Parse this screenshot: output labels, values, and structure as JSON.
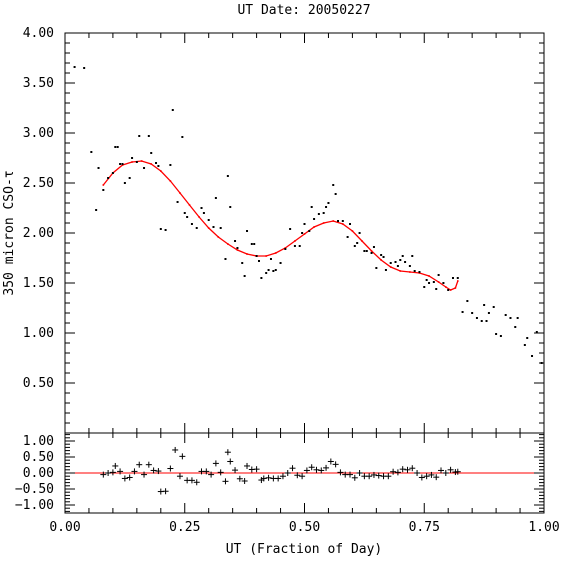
{
  "chart_data": [
    {
      "type": "scatter",
      "title": "UT Date: 20050227",
      "ylabel": "350 micron CSO-τ",
      "xlabel": "",
      "xlim": [
        0,
        1
      ],
      "ylim": [
        0,
        4
      ],
      "yticks": [
        "0.50",
        "1.00",
        "1.50",
        "2.00",
        "2.50",
        "3.00",
        "3.50",
        "4.00"
      ],
      "ytick_values": [
        0.5,
        1.0,
        1.5,
        2.0,
        2.5,
        3.0,
        3.5,
        4.0
      ],
      "series": [
        {
          "kind": "points",
          "color": "#000000",
          "points": [
            [
              0.02,
              3.66
            ],
            [
              0.04,
              3.65
            ],
            [
              0.055,
              2.81
            ],
            [
              0.065,
              2.23
            ],
            [
              0.07,
              2.65
            ],
            [
              0.08,
              2.43
            ],
            [
              0.09,
              2.55
            ],
            [
              0.1,
              2.6
            ],
            [
              0.105,
              2.86
            ],
            [
              0.11,
              2.86
            ],
            [
              0.115,
              2.69
            ],
            [
              0.12,
              2.69
            ],
            [
              0.125,
              2.5
            ],
            [
              0.135,
              2.55
            ],
            [
              0.14,
              2.75
            ],
            [
              0.15,
              2.71
            ],
            [
              0.155,
              2.97
            ],
            [
              0.165,
              2.65
            ],
            [
              0.175,
              2.97
            ],
            [
              0.18,
              2.8
            ],
            [
              0.19,
              2.7
            ],
            [
              0.195,
              2.67
            ],
            [
              0.2,
              2.04
            ],
            [
              0.21,
              2.03
            ],
            [
              0.22,
              2.68
            ],
            [
              0.225,
              3.23
            ],
            [
              0.235,
              2.31
            ],
            [
              0.245,
              2.96
            ],
            [
              0.25,
              2.2
            ],
            [
              0.255,
              2.16
            ],
            [
              0.265,
              2.09
            ],
            [
              0.275,
              2.05
            ],
            [
              0.285,
              2.25
            ],
            [
              0.29,
              2.2
            ],
            [
              0.3,
              2.13
            ],
            [
              0.31,
              2.06
            ],
            [
              0.315,
              2.35
            ],
            [
              0.325,
              2.05
            ],
            [
              0.335,
              1.74
            ],
            [
              0.34,
              2.57
            ],
            [
              0.345,
              2.26
            ],
            [
              0.355,
              1.92
            ],
            [
              0.36,
              1.85
            ],
            [
              0.37,
              1.7
            ],
            [
              0.375,
              1.57
            ],
            [
              0.38,
              2.02
            ],
            [
              0.39,
              1.89
            ],
            [
              0.395,
              1.89
            ],
            [
              0.4,
              1.77
            ],
            [
              0.405,
              1.72
            ],
            [
              0.41,
              1.55
            ],
            [
              0.42,
              1.6
            ],
            [
              0.425,
              1.63
            ],
            [
              0.43,
              1.74
            ],
            [
              0.435,
              1.62
            ],
            [
              0.44,
              1.63
            ],
            [
              0.45,
              1.7
            ],
            [
              0.46,
              1.84
            ],
            [
              0.47,
              2.04
            ],
            [
              0.48,
              1.87
            ],
            [
              0.49,
              1.87
            ],
            [
              0.495,
              2.0
            ],
            [
              0.5,
              2.09
            ],
            [
              0.51,
              2.02
            ],
            [
              0.515,
              2.26
            ],
            [
              0.52,
              2.14
            ],
            [
              0.53,
              2.19
            ],
            [
              0.54,
              2.2
            ],
            [
              0.545,
              2.26
            ],
            [
              0.55,
              2.3
            ],
            [
              0.56,
              2.48
            ],
            [
              0.565,
              2.39
            ],
            [
              0.57,
              2.12
            ],
            [
              0.58,
              2.12
            ],
            [
              0.59,
              1.96
            ],
            [
              0.595,
              2.09
            ],
            [
              0.605,
              1.87
            ],
            [
              0.61,
              1.9
            ],
            [
              0.615,
              2.0
            ],
            [
              0.625,
              1.82
            ],
            [
              0.63,
              1.82
            ],
            [
              0.64,
              1.8
            ],
            [
              0.645,
              1.86
            ],
            [
              0.65,
              1.65
            ],
            [
              0.66,
              1.78
            ],
            [
              0.665,
              1.76
            ],
            [
              0.67,
              1.63
            ],
            [
              0.68,
              1.7
            ],
            [
              0.69,
              1.71
            ],
            [
              0.695,
              1.67
            ],
            [
              0.7,
              1.73
            ],
            [
              0.705,
              1.77
            ],
            [
              0.71,
              1.71
            ],
            [
              0.72,
              1.67
            ],
            [
              0.725,
              1.77
            ],
            [
              0.73,
              1.62
            ],
            [
              0.74,
              1.61
            ],
            [
              0.75,
              1.46
            ],
            [
              0.755,
              1.53
            ],
            [
              0.76,
              1.5
            ],
            [
              0.77,
              1.51
            ],
            [
              0.775,
              1.44
            ],
            [
              0.78,
              1.58
            ],
            [
              0.79,
              1.5
            ],
            [
              0.8,
              1.43
            ],
            [
              0.81,
              1.55
            ],
            [
              0.82,
              1.55
            ],
            [
              0.83,
              1.21
            ],
            [
              0.84,
              1.32
            ],
            [
              0.85,
              1.2
            ],
            [
              0.86,
              1.15
            ],
            [
              0.87,
              1.12
            ],
            [
              0.875,
              1.28
            ],
            [
              0.88,
              1.12
            ],
            [
              0.885,
              1.2
            ],
            [
              0.895,
              1.26
            ],
            [
              0.9,
              0.99
            ],
            [
              0.91,
              0.97
            ],
            [
              0.92,
              1.18
            ],
            [
              0.93,
              1.15
            ],
            [
              0.94,
              1.06
            ],
            [
              0.945,
              1.15
            ],
            [
              0.96,
              0.88
            ],
            [
              0.965,
              0.95
            ],
            [
              0.975,
              0.77
            ],
            [
              0.985,
              1.01
            ],
            [
              0.995,
              0.7
            ]
          ]
        },
        {
          "kind": "line",
          "color": "#ff0000",
          "points": [
            [
              0.08,
              2.48
            ],
            [
              0.1,
              2.6
            ],
            [
              0.12,
              2.68
            ],
            [
              0.14,
              2.71
            ],
            [
              0.16,
              2.72
            ],
            [
              0.18,
              2.69
            ],
            [
              0.2,
              2.62
            ],
            [
              0.22,
              2.52
            ],
            [
              0.24,
              2.4
            ],
            [
              0.26,
              2.28
            ],
            [
              0.28,
              2.16
            ],
            [
              0.3,
              2.05
            ],
            [
              0.32,
              1.96
            ],
            [
              0.34,
              1.89
            ],
            [
              0.36,
              1.83
            ],
            [
              0.38,
              1.79
            ],
            [
              0.4,
              1.77
            ],
            [
              0.42,
              1.77
            ],
            [
              0.44,
              1.8
            ],
            [
              0.46,
              1.85
            ],
            [
              0.48,
              1.92
            ],
            [
              0.5,
              1.99
            ],
            [
              0.52,
              2.06
            ],
            [
              0.54,
              2.1
            ],
            [
              0.56,
              2.12
            ],
            [
              0.58,
              2.09
            ],
            [
              0.6,
              2.02
            ],
            [
              0.62,
              1.92
            ],
            [
              0.64,
              1.82
            ],
            [
              0.66,
              1.73
            ],
            [
              0.68,
              1.66
            ],
            [
              0.7,
              1.62
            ],
            [
              0.72,
              1.61
            ],
            [
              0.74,
              1.6
            ],
            [
              0.76,
              1.57
            ],
            [
              0.78,
              1.51
            ],
            [
              0.795,
              1.46
            ],
            [
              0.805,
              1.43
            ],
            [
              0.815,
              1.45
            ],
            [
              0.82,
              1.52
            ]
          ]
        }
      ]
    },
    {
      "type": "scatter",
      "title": "",
      "xlabel": "UT (Fraction of Day)",
      "ylabel": "",
      "xlim": [
        0,
        1
      ],
      "ylim": [
        -1.25,
        1.25
      ],
      "xticks": [
        "0.00",
        "0.25",
        "0.50",
        "0.75",
        "1.00"
      ],
      "xtick_values": [
        0,
        0.25,
        0.5,
        0.75,
        1.0
      ],
      "yticks": [
        "1.00",
        "0.50",
        "0.00",
        "−0.50",
        "−1.00"
      ],
      "ytick_values": [
        1.0,
        0.5,
        0.0,
        -0.5,
        -1.0
      ],
      "reference_line": {
        "y": 0,
        "color": "#ff0000"
      },
      "series": [
        {
          "kind": "plus-markers",
          "color": "#000000",
          "points": [
            [
              0.08,
              -0.05
            ],
            [
              0.09,
              0.0
            ],
            [
              0.1,
              0.02
            ],
            [
              0.105,
              0.22
            ],
            [
              0.115,
              0.05
            ],
            [
              0.125,
              -0.17
            ],
            [
              0.135,
              -0.14
            ],
            [
              0.145,
              0.05
            ],
            [
              0.155,
              0.26
            ],
            [
              0.165,
              -0.05
            ],
            [
              0.175,
              0.26
            ],
            [
              0.185,
              0.08
            ],
            [
              0.195,
              0.06
            ],
            [
              0.2,
              -0.58
            ],
            [
              0.21,
              -0.57
            ],
            [
              0.22,
              0.14
            ],
            [
              0.23,
              0.72
            ],
            [
              0.24,
              -0.1
            ],
            [
              0.245,
              0.52
            ],
            [
              0.255,
              -0.23
            ],
            [
              0.265,
              -0.23
            ],
            [
              0.275,
              -0.29
            ],
            [
              0.285,
              0.05
            ],
            [
              0.295,
              0.05
            ],
            [
              0.305,
              -0.05
            ],
            [
              0.315,
              0.3
            ],
            [
              0.325,
              0.02
            ],
            [
              0.335,
              -0.26
            ],
            [
              0.34,
              0.65
            ],
            [
              0.345,
              0.36
            ],
            [
              0.355,
              0.09
            ],
            [
              0.365,
              -0.18
            ],
            [
              0.375,
              -0.25
            ],
            [
              0.38,
              0.22
            ],
            [
              0.39,
              0.11
            ],
            [
              0.4,
              0.12
            ],
            [
              0.41,
              -0.22
            ],
            [
              0.415,
              -0.17
            ],
            [
              0.425,
              -0.15
            ],
            [
              0.435,
              -0.17
            ],
            [
              0.445,
              -0.17
            ],
            [
              0.455,
              -0.1
            ],
            [
              0.465,
              0.0
            ],
            [
              0.475,
              0.15
            ],
            [
              0.485,
              -0.07
            ],
            [
              0.495,
              -0.1
            ],
            [
              0.505,
              0.08
            ],
            [
              0.515,
              0.18
            ],
            [
              0.525,
              0.1
            ],
            [
              0.535,
              0.08
            ],
            [
              0.545,
              0.16
            ],
            [
              0.555,
              0.36
            ],
            [
              0.565,
              0.27
            ],
            [
              0.575,
              0.02
            ],
            [
              0.585,
              -0.05
            ],
            [
              0.595,
              -0.05
            ],
            [
              0.605,
              -0.15
            ],
            [
              0.615,
              0.0
            ],
            [
              0.625,
              -0.1
            ],
            [
              0.635,
              -0.1
            ],
            [
              0.645,
              -0.06
            ],
            [
              0.655,
              -0.08
            ],
            [
              0.665,
              -0.1
            ],
            [
              0.675,
              -0.1
            ],
            [
              0.685,
              0.04
            ],
            [
              0.695,
              0.02
            ],
            [
              0.705,
              0.12
            ],
            [
              0.715,
              0.1
            ],
            [
              0.725,
              0.15
            ],
            [
              0.735,
              0.0
            ],
            [
              0.745,
              -0.14
            ],
            [
              0.755,
              -0.1
            ],
            [
              0.765,
              -0.06
            ],
            [
              0.775,
              -0.13
            ],
            [
              0.785,
              0.08
            ],
            [
              0.795,
              0.0
            ],
            [
              0.805,
              0.1
            ],
            [
              0.815,
              0.03
            ],
            [
              0.82,
              0.04
            ]
          ]
        }
      ]
    }
  ]
}
